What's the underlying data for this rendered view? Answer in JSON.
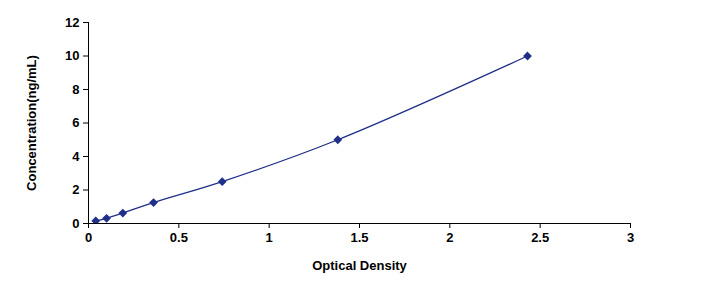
{
  "chart_data": {
    "type": "line",
    "x_label": "Optical Density",
    "y_label": "Concentration(ng/mL)",
    "x": [
      0.04,
      0.1,
      0.19,
      0.36,
      0.74,
      1.38,
      2.43
    ],
    "values": [
      0.156,
      0.312,
      0.625,
      1.25,
      2.5,
      5,
      10
    ],
    "color": "#1f2f8a",
    "marker": "diamond",
    "line_style": "solid",
    "grid": false,
    "xlim": [
      0,
      3
    ],
    "xticks": [
      0,
      0.5,
      1,
      1.5,
      2,
      2.5,
      3
    ],
    "ylim": [
      0,
      12
    ],
    "yticks": [
      0,
      2,
      4,
      6,
      8,
      10,
      12
    ]
  }
}
